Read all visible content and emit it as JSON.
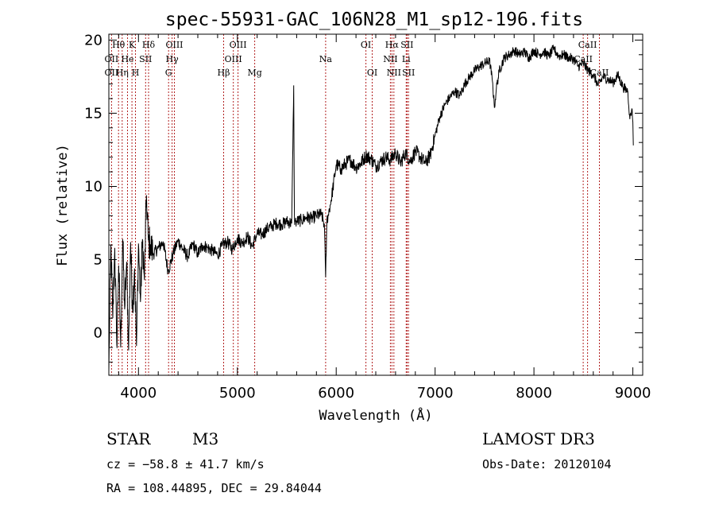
{
  "chart_data": {
    "type": "line",
    "title": "spec-55931-GAC_106N28_M1_sp12-196.fits",
    "xlabel": "Wavelength (Å)",
    "ylabel": "Flux (relative)",
    "xlim": [
      3700,
      9100
    ],
    "ylim": [
      -2.9,
      20.4
    ],
    "xticks": [
      4000,
      5000,
      6000,
      7000,
      8000,
      9000
    ],
    "yticks": [
      0,
      5,
      10,
      15,
      20
    ],
    "series": [
      {
        "name": "spectrum",
        "x": [
          3700,
          3720,
          3740,
          3760,
          3780,
          3800,
          3820,
          3840,
          3860,
          3880,
          3900,
          3920,
          3940,
          3960,
          3980,
          4000,
          4020,
          4040,
          4060,
          4080,
          4100,
          4120,
          4150,
          4200,
          4250,
          4300,
          4350,
          4400,
          4450,
          4500,
          4550,
          4600,
          4650,
          4700,
          4750,
          4800,
          4850,
          4900,
          4950,
          5000,
          5050,
          5100,
          5150,
          5200,
          5250,
          5300,
          5350,
          5400,
          5450,
          5500,
          5550,
          5570,
          5577,
          5585,
          5600,
          5650,
          5700,
          5750,
          5800,
          5850,
          5880,
          5893,
          5905,
          5920,
          5950,
          6000,
          6050,
          6100,
          6150,
          6200,
          6250,
          6300,
          6350,
          6400,
          6450,
          6500,
          6550,
          6600,
          6650,
          6700,
          6750,
          6800,
          6850,
          6900,
          6950,
          7000,
          7050,
          7100,
          7150,
          7200,
          7250,
          7300,
          7350,
          7400,
          7450,
          7500,
          7550,
          7580,
          7600,
          7620,
          7650,
          7700,
          7750,
          7800,
          7850,
          7900,
          7950,
          8000,
          8050,
          8100,
          8150,
          8200,
          8250,
          8300,
          8350,
          8400,
          8450,
          8500,
          8550,
          8600,
          8650,
          8700,
          8750,
          8800,
          8850,
          8900,
          8950,
          8970,
          8990,
          9000,
          9005
        ],
        "y": [
          -2.6,
          6.0,
          1.0,
          5.8,
          -0.8,
          4.6,
          -1.0,
          6.4,
          1.6,
          4.8,
          -1.2,
          6.2,
          1.6,
          4.4,
          -0.9,
          6.1,
          2.1,
          6.4,
          3.6,
          9.4,
          6.3,
          6.0,
          5.4,
          5.8,
          6.2,
          4.2,
          5.4,
          6.3,
          5.7,
          5.2,
          6.1,
          5.4,
          6.0,
          5.8,
          5.6,
          5.3,
          6.0,
          6.2,
          5.7,
          6.5,
          6.1,
          6.6,
          5.9,
          6.8,
          6.7,
          7.1,
          7.3,
          7.5,
          7.4,
          7.6,
          7.5,
          16.9,
          7.8,
          7.6,
          7.6,
          7.7,
          7.9,
          7.8,
          8.0,
          8.1,
          7.4,
          3.8,
          7.6,
          8.1,
          9.1,
          11.5,
          11.2,
          11.6,
          11.8,
          11.3,
          11.6,
          12.1,
          11.9,
          11.4,
          11.7,
          12.0,
          11.8,
          12.3,
          11.6,
          12.3,
          11.7,
          12.4,
          12.0,
          11.6,
          12.1,
          13.5,
          14.8,
          15.6,
          16.1,
          16.5,
          16.2,
          17.0,
          17.5,
          17.9,
          18.2,
          18.4,
          18.6,
          17.2,
          15.4,
          16.7,
          17.9,
          18.8,
          19.0,
          19.3,
          19.0,
          19.2,
          18.8,
          19.3,
          19.0,
          19.2,
          18.9,
          19.4,
          18.9,
          19.0,
          18.8,
          18.7,
          18.2,
          18.4,
          17.9,
          17.6,
          16.9,
          17.5,
          17.3,
          17.1,
          17.6,
          16.8,
          16.5,
          14.6,
          15.3,
          14.4,
          12.8
        ]
      }
    ],
    "line_labels": [
      {
        "label": "Hθ",
        "x": 3798,
        "row": 1
      },
      {
        "label": "K",
        "x": 3934,
        "row": 1
      },
      {
        "label": "Hδ",
        "x": 4102,
        "row": 1
      },
      {
        "label": "OIII",
        "x": 4363,
        "row": 1
      },
      {
        "label": "OIII",
        "x": 5007,
        "row": 1
      },
      {
        "label": "OI",
        "x": 6300,
        "row": 1
      },
      {
        "label": "Hα",
        "x": 6563,
        "row": 1
      },
      {
        "label": "SII",
        "x": 6717,
        "row": 1
      },
      {
        "label": "CaII",
        "x": 8542,
        "row": 1
      },
      {
        "label": "OII",
        "x": 3727,
        "row": 2
      },
      {
        "label": "He",
        "x": 3889,
        "row": 2
      },
      {
        "label": "SII",
        "x": 4072,
        "row": 2
      },
      {
        "label": "Hγ",
        "x": 4340,
        "row": 2
      },
      {
        "label": "OIII",
        "x": 4959,
        "row": 2
      },
      {
        "label": "Na",
        "x": 5893,
        "row": 2
      },
      {
        "label": "NII",
        "x": 6548,
        "row": 2
      },
      {
        "label": "Li",
        "x": 6708,
        "row": 2
      },
      {
        "label": "CaII",
        "x": 8498,
        "row": 2
      },
      {
        "label": "OII",
        "x": 3727,
        "row": 3
      },
      {
        "label": "Hη",
        "x": 3835,
        "row": 3
      },
      {
        "label": "H",
        "x": 3969,
        "row": 3
      },
      {
        "label": "G",
        "x": 4304,
        "row": 3
      },
      {
        "label": "Hβ",
        "x": 4861,
        "row": 3
      },
      {
        "label": "Mg",
        "x": 5175,
        "row": 3
      },
      {
        "label": "OI",
        "x": 6364,
        "row": 3
      },
      {
        "label": "NII",
        "x": 6583,
        "row": 3
      },
      {
        "label": "SII",
        "x": 6731,
        "row": 3
      },
      {
        "label": "CaII",
        "x": 8662,
        "row": 3
      }
    ],
    "marker_lines": [
      3727,
      3798,
      3835,
      3889,
      3934,
      3969,
      4072,
      4102,
      4304,
      4340,
      4363,
      4861,
      4959,
      5007,
      5175,
      5893,
      6300,
      6364,
      6548,
      6563,
      6583,
      6708,
      6717,
      6731,
      8498,
      8542,
      8662
    ],
    "marker_color": "#b22222"
  },
  "info": {
    "object_class": "STAR",
    "subclass": "M3",
    "survey": "LAMOST DR3",
    "cz": "cz = −58.8 ± 41.7 km/s",
    "obs_date": "Obs-Date: 20120104",
    "coords": "RA = 108.44895, DEC =  29.84044"
  }
}
